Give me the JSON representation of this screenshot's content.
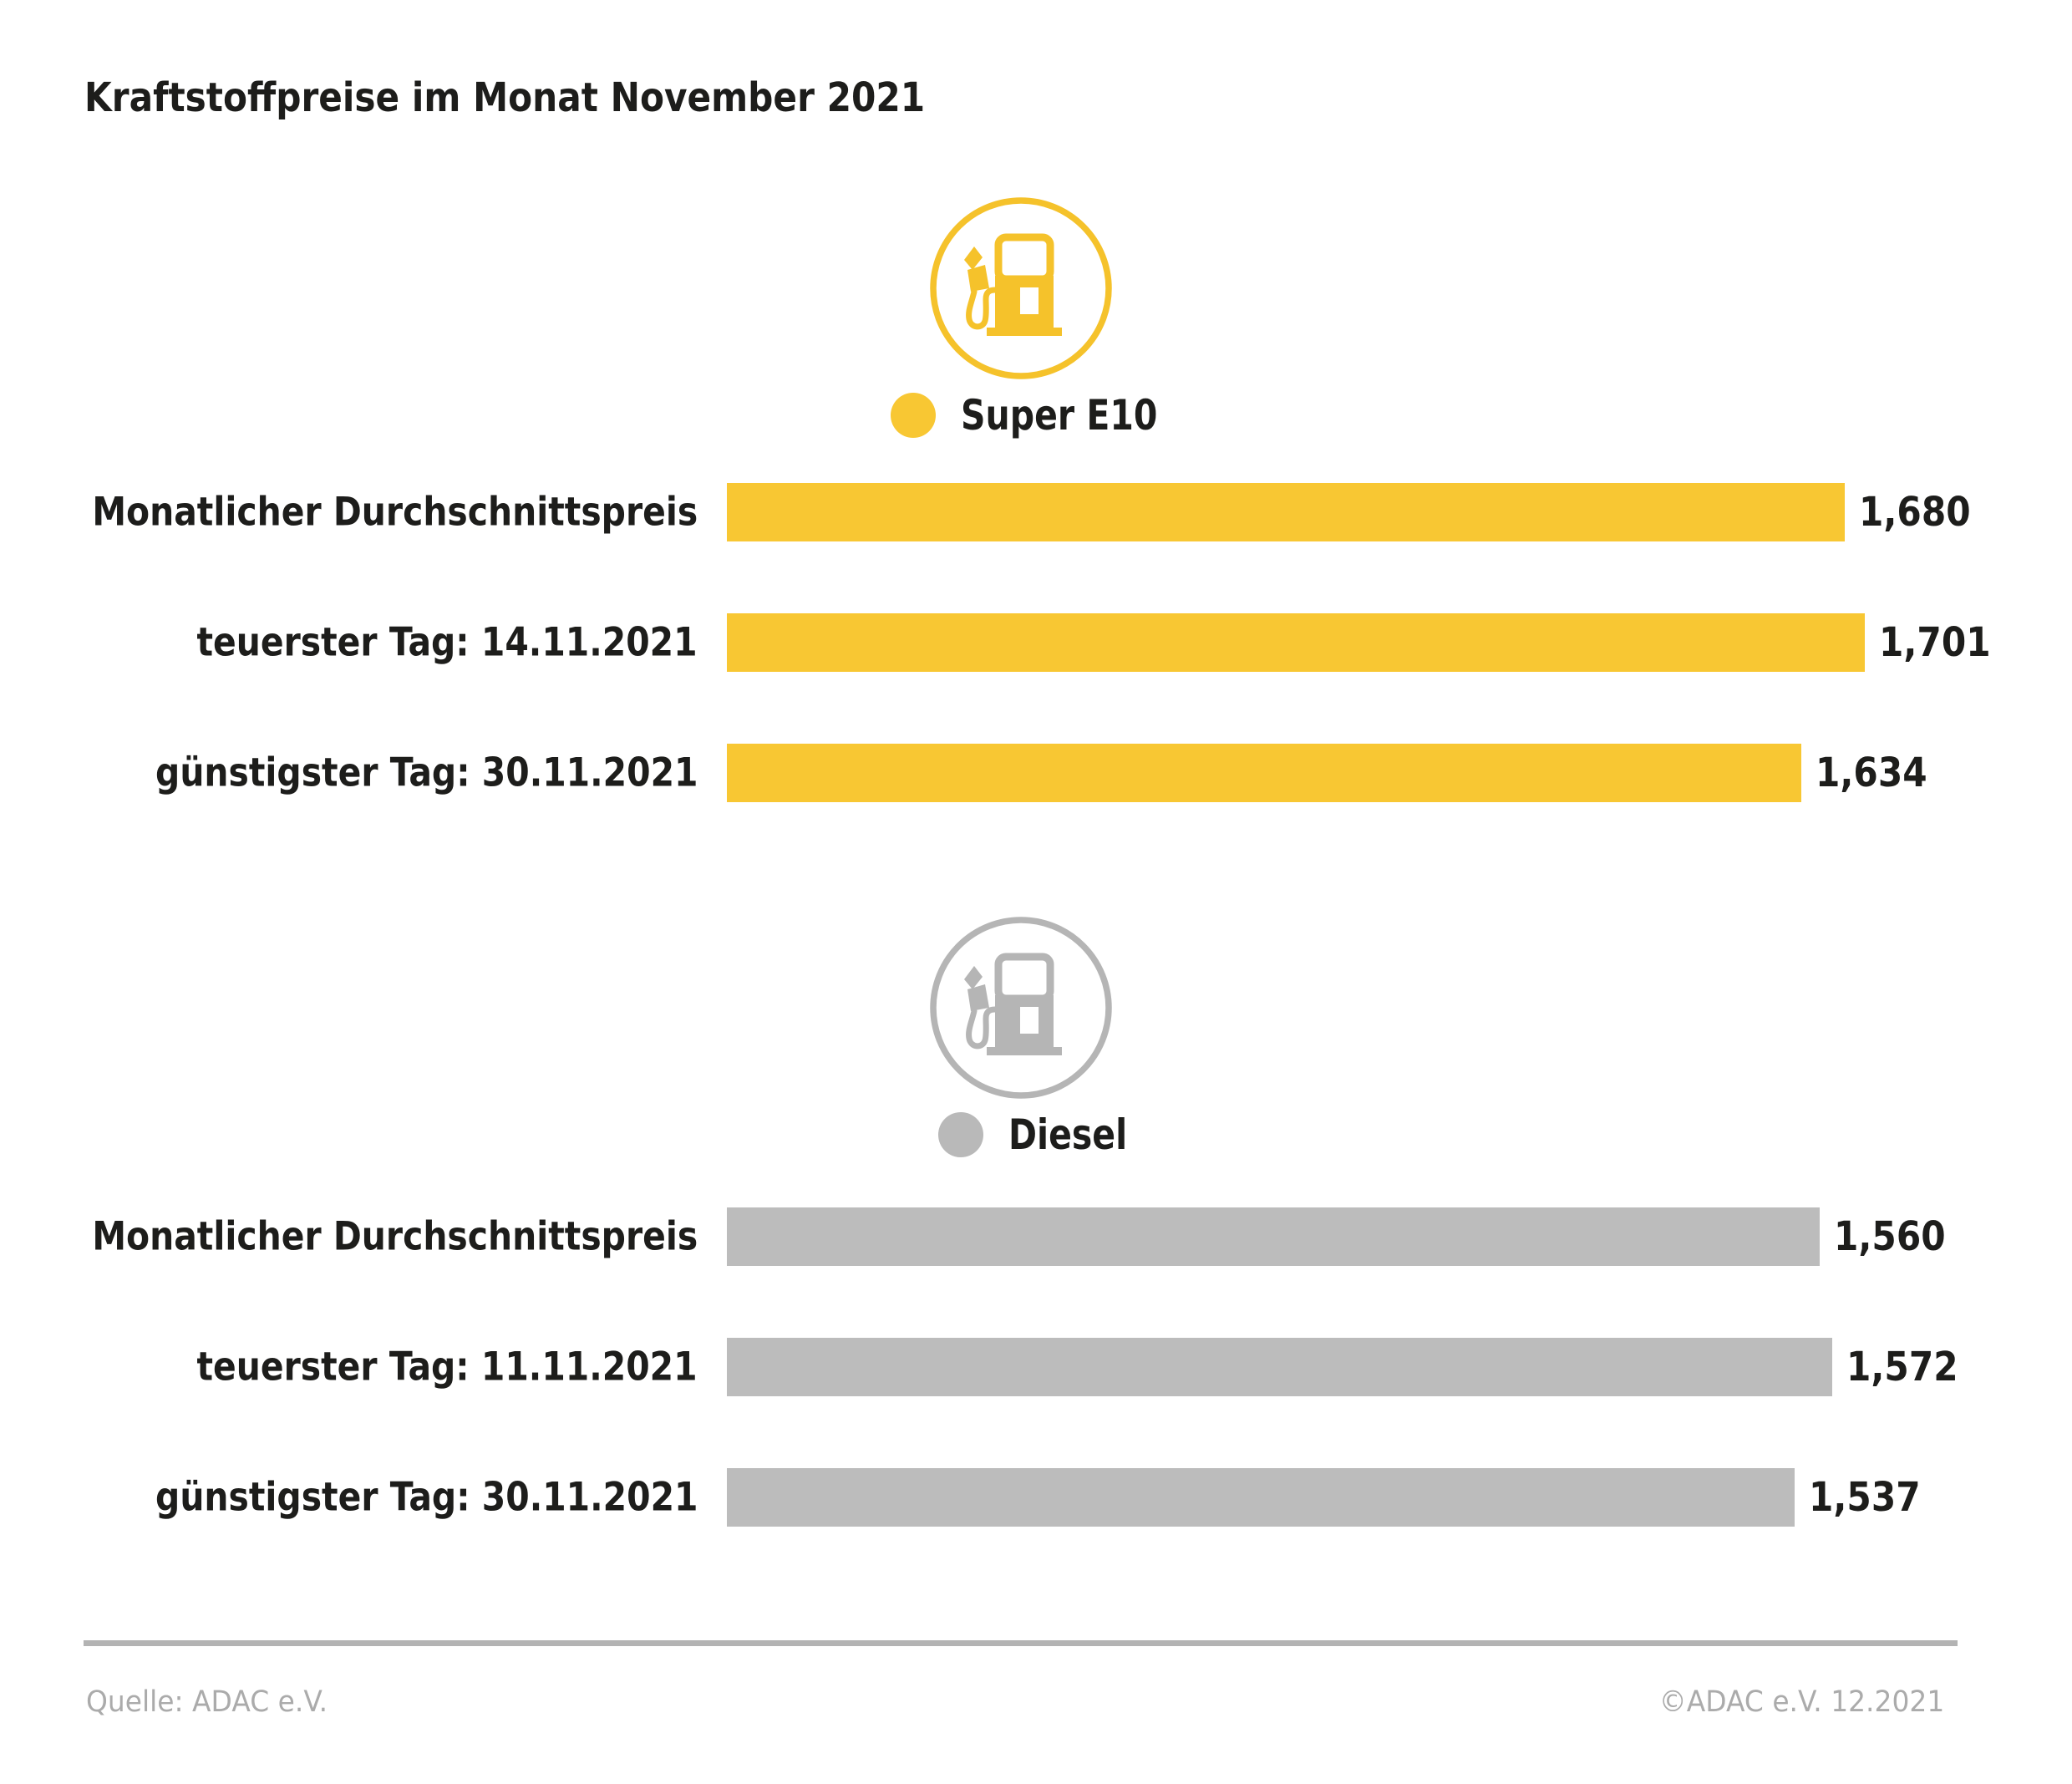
{
  "title": "Kraftstoffpreise im Monat November 2021",
  "colors": {
    "super_bar": "#F8C733",
    "super_icon": "#F5C22B",
    "diesel_bar": "#BCBCBC",
    "diesel_icon": "#B5B5B5",
    "diesel_dot": "#B9B9B9",
    "text": "#1D1D1B",
    "footer_text": "#ABABAB",
    "footer_line": "#B3B3B3"
  },
  "groups": [
    {
      "name": "Super E10",
      "rows": [
        {
          "label": "Monatlicher Durchschnittspreis",
          "value": "1,680"
        },
        {
          "label": "teuerster Tag: 14.11.2021",
          "value": "1,701"
        },
        {
          "label": "günstigster Tag: 30.11.2021",
          "value": "1,634"
        }
      ]
    },
    {
      "name": "Diesel",
      "rows": [
        {
          "label": "Monatlicher Durchschnittspreis",
          "value": "1,560"
        },
        {
          "label": "teuerster Tag: 11.11.2021",
          "value": "1,572"
        },
        {
          "label": "günstigster Tag: 30.11.2021",
          "value": "1,537"
        }
      ]
    }
  ],
  "footer": {
    "source": "Quelle: ADAC e.V.",
    "copyright": "©ADAC e.V. 12.2021"
  },
  "chart_data": {
    "type": "bar",
    "orientation": "horizontal",
    "title": "Kraftstoffpreise im Monat November 2021",
    "groups": [
      {
        "name": "Super E10",
        "categories": [
          "Monatlicher Durchschnittspreis",
          "teuerster Tag: 14.11.2021",
          "günstigster Tag: 30.11.2021"
        ],
        "values": [
          1.68,
          1.701,
          1.634
        ]
      },
      {
        "name": "Diesel",
        "categories": [
          "Monatlicher Durchschnittspreis",
          "teuerster Tag: 11.11.2021",
          "günstigster Tag: 30.11.2021"
        ],
        "values": [
          1.56,
          1.572,
          1.537
        ]
      }
    ],
    "legend_position": "above-each-group",
    "grid": false
  }
}
